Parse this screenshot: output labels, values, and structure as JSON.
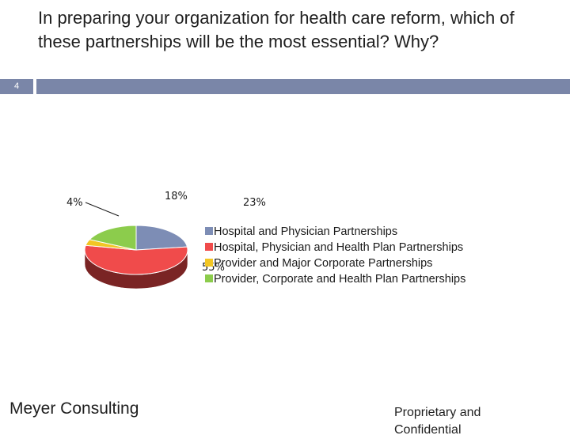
{
  "slide": {
    "title": "In preparing your organization for health care reform, which of these partnerships will be the most essential? Why?",
    "number": "4",
    "footer_left": "Meyer Consulting",
    "footer_right": "Proprietary and Confidential"
  },
  "chart_data": {
    "type": "pie",
    "three_d": true,
    "legend_position": "right",
    "series": [
      {
        "name": "Hospital and Physician Partnerships",
        "value": 23,
        "label": "23%",
        "color": "#7d8db5",
        "side_color": "#4b5679"
      },
      {
        "name": "Hospital, Physician and Health Plan Partnerships",
        "value": 55,
        "label": "55%",
        "color": "#f04b4b",
        "side_color": "#7a2424"
      },
      {
        "name": "Provider and Major Corporate Partnerships",
        "value": 4,
        "label": "4%",
        "color": "#f2c624",
        "side_color": "#8a6d10"
      },
      {
        "name": "Provider, Corporate and Health Plan Partnerships",
        "value": 18,
        "label": "18%",
        "color": "#8ccc4c",
        "side_color": "#4d7a22"
      }
    ]
  }
}
